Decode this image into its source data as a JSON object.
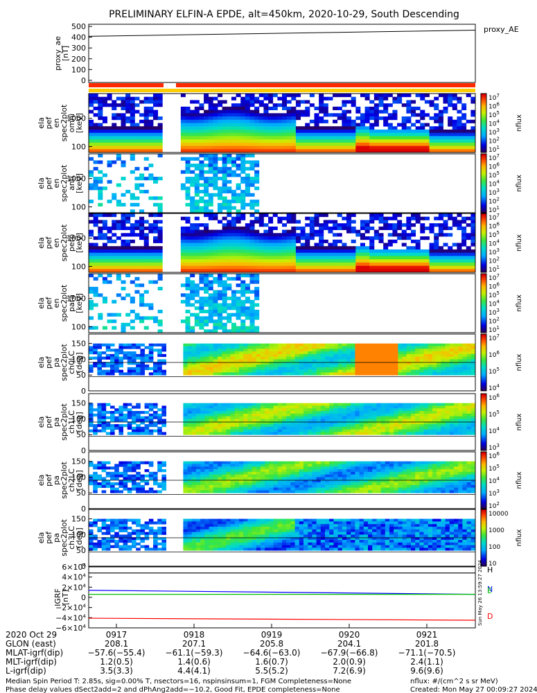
{
  "title": "PRELIMINARY ELFIN-A EPDE, alt=450km, 2020-10-29, South Descending",
  "proxy_ae": {
    "ylabel_lines": [
      "proxy_ae",
      "[nT]"
    ],
    "ticks": [
      "500",
      "400",
      "300",
      "200",
      "100",
      "0"
    ],
    "tick_values": [
      500,
      400,
      300,
      200,
      100,
      0
    ],
    "legend": "proxy_AE",
    "ylim": [
      -20,
      520
    ],
    "x": [
      0,
      1
    ],
    "y": [
      408,
      465
    ]
  },
  "energy_panels": [
    {
      "ylabel_lines": [
        "ela",
        "pef",
        "en",
        "spec2plot",
        "omni",
        "[keV]"
      ],
      "ticks": [
        "1000",
        "100"
      ],
      "cb_ticks": [
        "10^7",
        "10^6",
        "10^5",
        "10^4",
        "10^3",
        "10^2",
        "10^1"
      ],
      "cb_label": "nflux",
      "style": "full"
    },
    {
      "ylabel_lines": [
        "ela",
        "pef",
        "en",
        "spec2plot",
        "anti",
        "[keV]"
      ],
      "ticks": [
        "1000",
        "100"
      ],
      "cb_ticks": [
        "10^7",
        "10^6",
        "10^5",
        "10^4",
        "10^3",
        "10^2",
        "10^1"
      ],
      "cb_label": "nflux",
      "style": "sparse"
    },
    {
      "ylabel_lines": [
        "ela",
        "pef",
        "en",
        "spec2plot",
        "perp",
        "[keV]"
      ],
      "ticks": [
        "1000",
        "100"
      ],
      "cb_ticks": [
        "10^7",
        "10^6",
        "10^5",
        "10^4",
        "10^3",
        "10^2",
        "10^1"
      ],
      "cb_label": "nflux",
      "style": "full"
    },
    {
      "ylabel_lines": [
        "ela",
        "pef",
        "en",
        "spec2plot",
        "para",
        "[keV]"
      ],
      "ticks": [
        "1000",
        "100"
      ],
      "cb_ticks": [
        "10^7",
        "10^6",
        "10^5",
        "10^4",
        "10^3",
        "10^2",
        "10^1"
      ],
      "cb_label": "nflux",
      "style": "sparse"
    }
  ],
  "pitch_panels": [
    {
      "ylabel_lines": [
        "ela",
        "pef",
        "pa",
        "spec2plot",
        "ch0LC",
        "[deg]"
      ],
      "ticks": [
        "150",
        "100",
        "50",
        "0"
      ],
      "cb_ticks": [
        "10^7",
        "10^6",
        "10^5",
        "10^4"
      ],
      "cb_label": "nflux"
    },
    {
      "ylabel_lines": [
        "ela",
        "pef",
        "pa",
        "spec2plot",
        "ch1LC",
        "[deg]"
      ],
      "ticks": [
        "150",
        "100",
        "50",
        "0"
      ],
      "cb_ticks": [
        "10^6",
        "10^5",
        "10^4",
        "10^3"
      ],
      "cb_label": "nflux"
    },
    {
      "ylabel_lines": [
        "ela",
        "pef",
        "pa",
        "spec2plot",
        "ch2LC",
        "[deg]"
      ],
      "ticks": [
        "150",
        "100",
        "50",
        "0"
      ],
      "cb_ticks": [
        "10^6",
        "10^5",
        "10^4",
        "10^3",
        "10^2"
      ],
      "cb_label": "nflux"
    },
    {
      "ylabel_lines": [
        "ela",
        "pef",
        "pa",
        "spec2plot",
        "ch3LC",
        "[deg]"
      ],
      "ticks": [
        "150",
        "100",
        "50",
        "0"
      ],
      "cb_ticks": [
        "10000",
        "1000",
        "100",
        "10"
      ],
      "cb_label": "nflux"
    }
  ],
  "igrf": {
    "ylabel_lines": [
      "IGRF",
      "[nT]"
    ],
    "ticks": [
      "6×10^4",
      "4×10^4",
      "2×10^4",
      "0",
      "−2×10^4",
      "−4×10^4",
      "−6×10^4"
    ],
    "tick_values": [
      60000,
      40000,
      20000,
      0,
      -20000,
      -40000,
      -60000
    ],
    "ylim": [
      -60000,
      60000
    ],
    "legend": [
      "H",
      "N",
      "E",
      "D"
    ],
    "colors": [
      "#000000",
      "#0000ff",
      "#00c000",
      "#ff0000"
    ],
    "side_note": "Sun May 26 13:59:27 2024",
    "series": [
      {
        "name": "H",
        "x": [
          0,
          1
        ],
        "y": [
          48000,
          48000
        ]
      },
      {
        "name": "N",
        "x": [
          0,
          1
        ],
        "y": [
          14000,
          6000
        ]
      },
      {
        "name": "E",
        "x": [
          0,
          1
        ],
        "y": [
          6000,
          6000
        ]
      },
      {
        "name": "D",
        "x": [
          0,
          1
        ],
        "y": [
          -41000,
          -45000
        ]
      }
    ]
  },
  "time_axis": {
    "row_labels": [
      "2020 Oct 29",
      "GLON (east)",
      "MLAT-igrf(dip)",
      "MLT-igrf(dip)",
      "L-igrf(dip)"
    ],
    "columns": [
      {
        "time": "0917",
        "glon": "208.1",
        "mlat": "−57.6(−55.4)",
        "mlt": "1.2(0.5)",
        "l": "3.5(3.3)"
      },
      {
        "time": "0918",
        "glon": "207.1",
        "mlat": "−61.1(−59.3)",
        "mlt": "1.4(0.6)",
        "l": "4.4(4.1)"
      },
      {
        "time": "0919",
        "glon": "205.8",
        "mlat": "−64.6(−63.0)",
        "mlt": "1.6(0.7)",
        "l": "5.5(5.2)"
      },
      {
        "time": "0920",
        "glon": "204.1",
        "mlat": "−67.9(−66.8)",
        "mlt": "2.0(0.9)",
        "l": "7.2(6.9)"
      },
      {
        "time": "0921",
        "glon": "201.8",
        "mlat": "−71.1(−70.5)",
        "mlt": "2.4(1.1)",
        "l": "9.6(9.6)"
      }
    ]
  },
  "footer": {
    "left1": "Median Spin Period T: 2.85s, sig=0.00% T, nsectors=16, nspinsinsum=1, FGM Completeness=None",
    "left2": "Phase delay values dSect2add=2 and dPhAng2add=−10.2, Good Fit, EPDE completeness=None",
    "right1": "nflux: #/(cm^2 s sr MeV)",
    "right2": "Created: Mon May 27 00:09:27 2024"
  },
  "colors": {
    "status_bar_red": "#ff2a00",
    "status_bar_yellow": "#ffcc00",
    "frame": "#000000"
  }
}
